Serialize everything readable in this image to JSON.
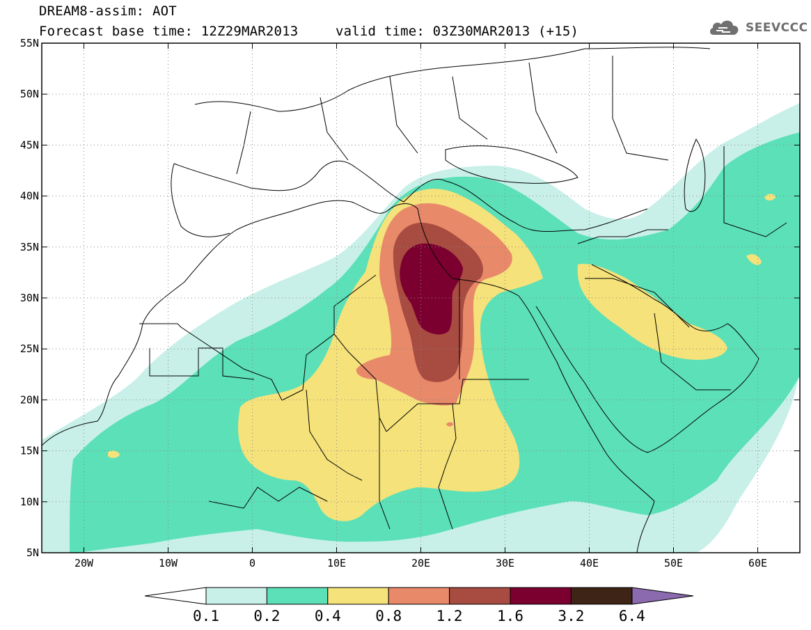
{
  "header": {
    "model": "DREAM8-assim: AOT",
    "base_time": "Forecast base time: 12Z29MAR2013",
    "valid_time": "valid time: 03Z30MAR2013 (+15)"
  },
  "logo": {
    "text": "SEEVCCC",
    "icon": "cloud-icon"
  },
  "map": {
    "lon_range": [
      -25,
      65
    ],
    "lat_range": [
      5,
      55
    ],
    "lon_ticks": [
      "20W",
      "10W",
      "0",
      "10E",
      "20E",
      "30E",
      "40E",
      "50E",
      "60E"
    ],
    "lat_ticks": [
      "5N",
      "10N",
      "15N",
      "20N",
      "25N",
      "30N",
      "35N",
      "40N",
      "45N",
      "50N",
      "55N"
    ],
    "grid": "dotted"
  },
  "colorbar": {
    "levels": [
      "0.1",
      "0.2",
      "0.4",
      "0.8",
      "1.2",
      "1.6",
      "3.2",
      "6.4"
    ],
    "colors": [
      "#ffffff",
      "#c8f0e8",
      "#5ce0b8",
      "#f5e27a",
      "#e8896a",
      "#a84b40",
      "#7b0030",
      "#3d2416",
      "#8b6ab0"
    ]
  }
}
